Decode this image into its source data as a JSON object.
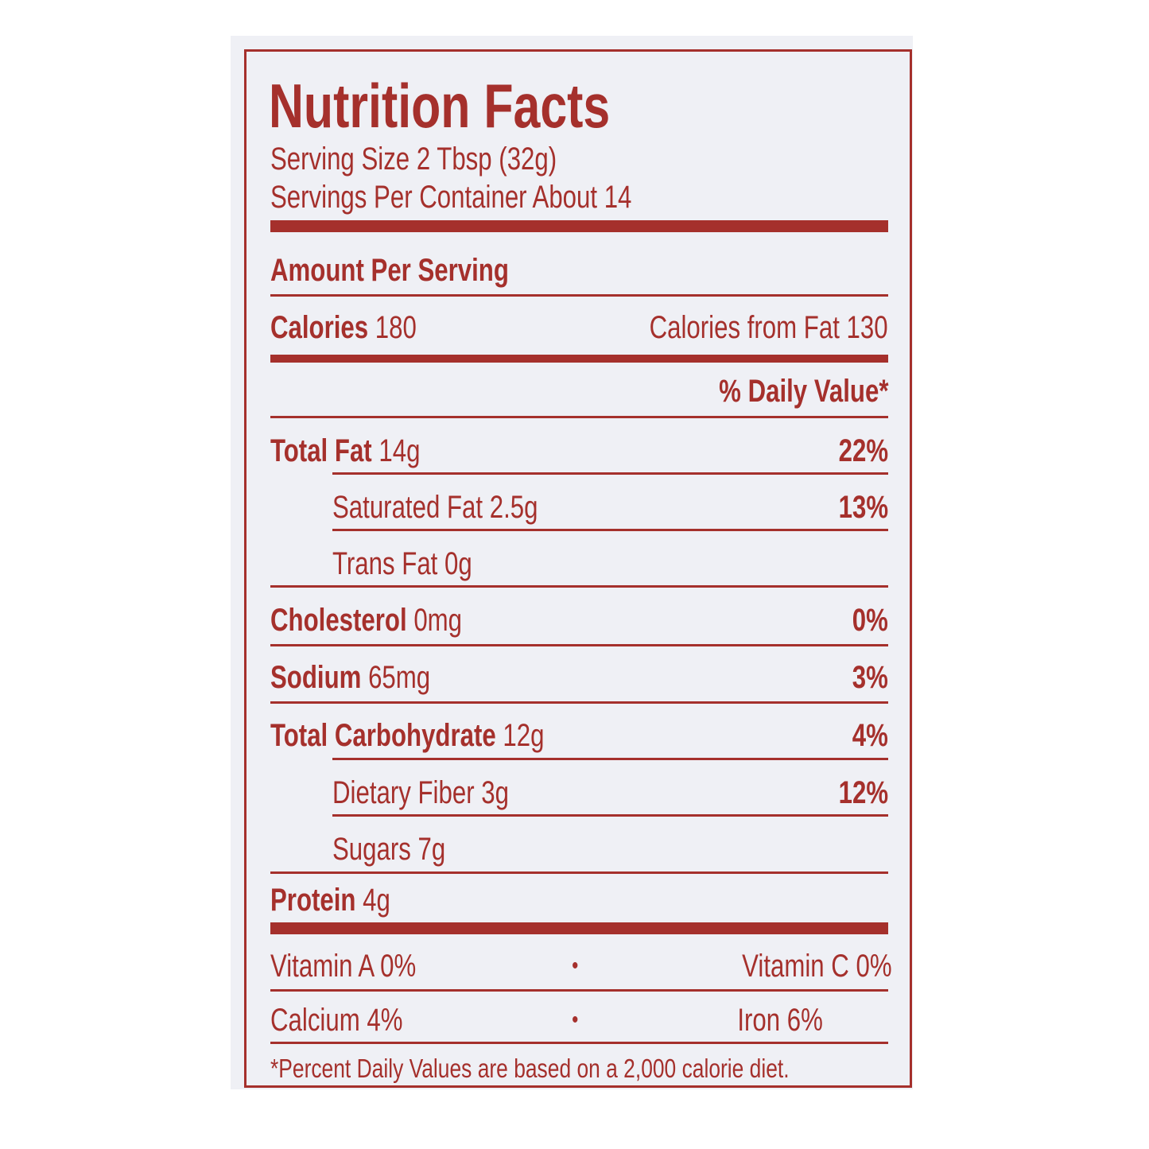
{
  "label": {
    "title": "Nutrition Facts",
    "serving_size": "Serving Size 2 Tbsp (32g)",
    "servings_per_container": "Servings Per Container About 14",
    "amount_per_serving": "Amount Per Serving",
    "calories_label": "Calories",
    "calories_value": "180",
    "calories_from_fat": "Calories from Fat 130",
    "daily_value_header": "% Daily Value*",
    "nutrients": [
      {
        "name": "Total Fat",
        "amount": "14g",
        "dv": "22%"
      },
      {
        "name": "Saturated Fat",
        "amount": "2.5g",
        "dv": "13%"
      },
      {
        "name": "Trans Fat",
        "amount": "0g",
        "dv": ""
      },
      {
        "name": "Cholesterol",
        "amount": "0mg",
        "dv": "0%"
      },
      {
        "name": "Sodium",
        "amount": "65mg",
        "dv": "3%"
      },
      {
        "name": "Total Carbohydrate",
        "amount": "12g",
        "dv": "4%"
      },
      {
        "name": "Dietary Fiber",
        "amount": "3g",
        "dv": "12%"
      },
      {
        "name": "Sugars",
        "amount": "7g",
        "dv": ""
      },
      {
        "name": "Protein",
        "amount": "4g",
        "dv": ""
      }
    ],
    "vitamins": [
      {
        "left": "Vitamin A 0%",
        "bullet": "•",
        "right": "Vitamin C 0%"
      },
      {
        "left": "Calcium 4%",
        "bullet": "•",
        "right": "Iron 6%"
      }
    ],
    "footnote": "*Percent Daily Values are based on a 2,000 calorie diet.",
    "ink_color": "#a5302c",
    "background_color": "#eff0f5"
  }
}
